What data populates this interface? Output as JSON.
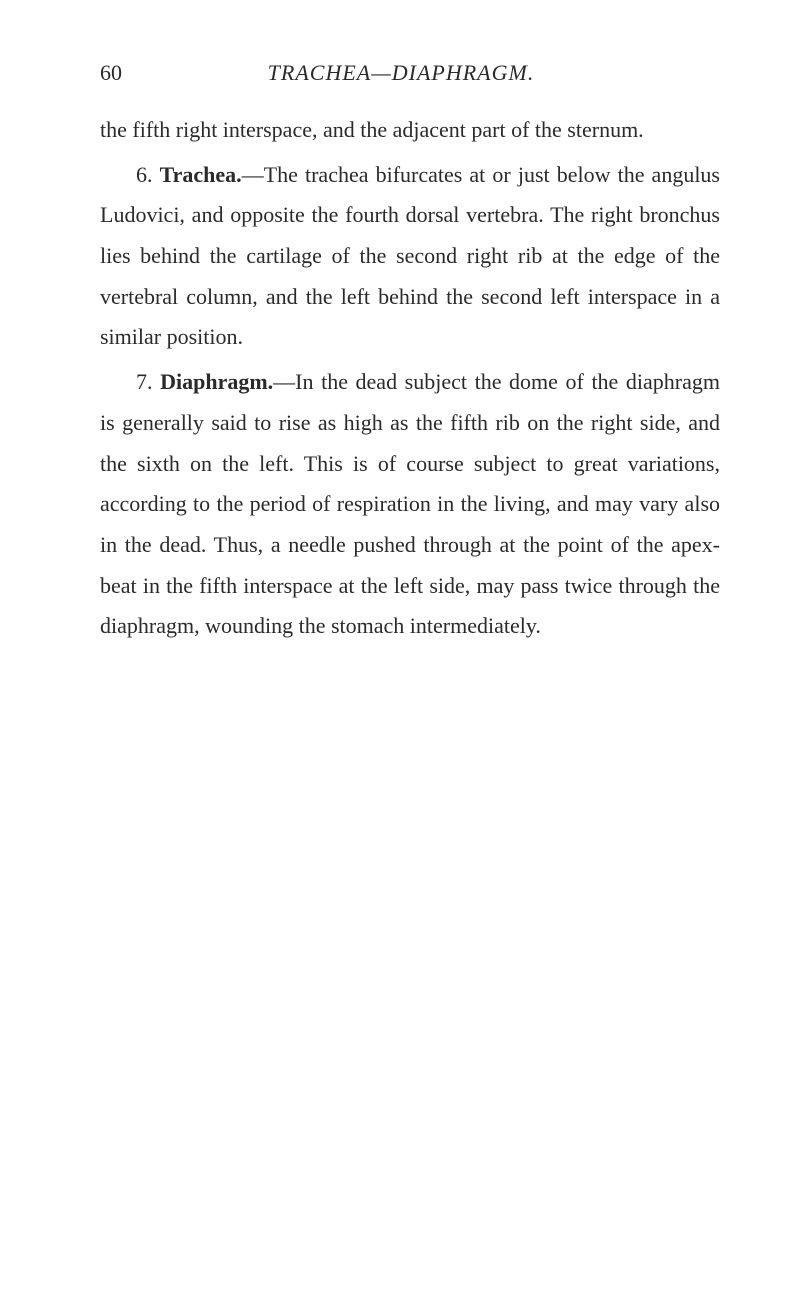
{
  "page_number": "60",
  "header_title": "TRACHEA—DIAPHRAGM.",
  "paragraphs": {
    "p1": "the fifth right interspace, and the adjacent part of the sternum.",
    "p2_num": "6. ",
    "p2_title": "Trachea.",
    "p2_text": "—The trachea bifurcates at or just below the angulus Ludovici, and opposite the fourth dorsal vertebra. The right bronchus lies behind the cartilage of the second right rib at the edge of the vertebral column, and the left behind the second left interspace in a similar position.",
    "p3_num": "7. ",
    "p3_title": "Diaphragm.",
    "p3_text": "—In the dead subject the dome of the diaphragm is generally said to rise as high as the fifth rib on the right side, and the sixth on the left. This is of course subject to great variations, according to the period of respiration in the living, and may vary also in the dead. Thus, a needle pushed through at the point of the apex-beat in the fifth interspace at the left side, may pass twice through the diaphragm, wounding the stomach intermediately."
  },
  "colors": {
    "background": "#ffffff",
    "text": "#2a2a2a"
  },
  "typography": {
    "body_fontsize": 22,
    "line_height": 1.85,
    "header_fontsize": 22
  }
}
